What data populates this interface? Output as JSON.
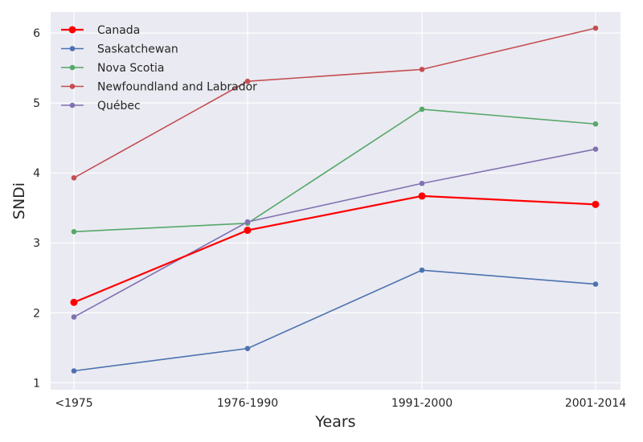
{
  "chart_data": {
    "type": "line",
    "categories": [
      "<1975",
      "1976-1990",
      "1991-2000",
      "2001-2014"
    ],
    "xlabel": "Years",
    "ylabel": "SNDi",
    "ylim": [
      0.9,
      6.3
    ],
    "yticks": [
      1,
      2,
      3,
      4,
      5,
      6
    ],
    "grid": true,
    "legend_position": "top-left",
    "series": [
      {
        "name": "Canada",
        "color": "#ff0000",
        "highlight": true,
        "values": [
          2.15,
          3.18,
          3.67,
          3.55
        ]
      },
      {
        "name": "Saskatchewan",
        "color": "#4c72b0",
        "values": [
          1.17,
          1.49,
          2.61,
          2.41
        ]
      },
      {
        "name": "Nova Scotia",
        "color": "#55a868",
        "values": [
          3.16,
          3.28,
          4.91,
          4.7
        ]
      },
      {
        "name": "Newfoundland and Labrador",
        "color": "#c44e52",
        "values": [
          3.93,
          5.31,
          5.48,
          6.07
        ]
      },
      {
        "name": "Québec",
        "color": "#8172b2",
        "values": [
          1.94,
          3.3,
          3.85,
          4.34
        ]
      }
    ]
  }
}
